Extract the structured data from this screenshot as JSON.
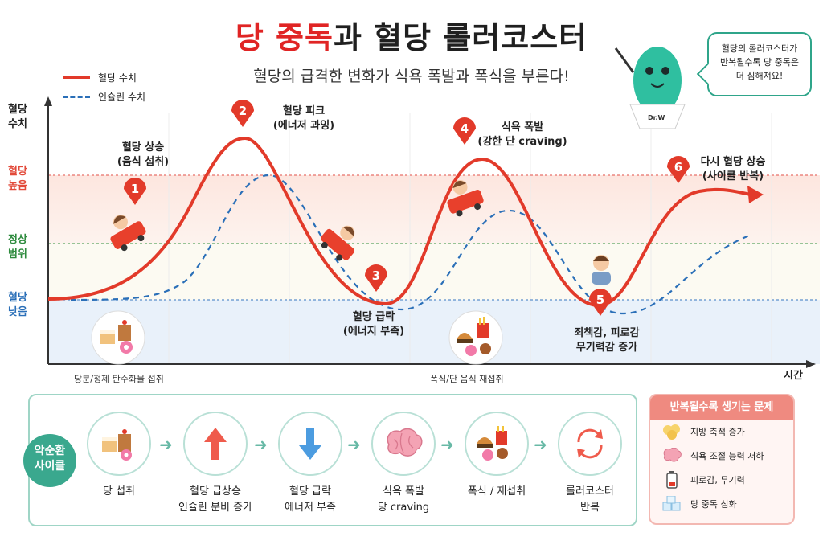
{
  "title": {
    "part_red": "당 중독",
    "part_dark": "과 혈당 롤러코스터"
  },
  "subtitle": "혈당의 급격한 변화가 식욕 폭발과 폭식을 부른다!",
  "legend": [
    {
      "label": "혈당 수치",
      "color": "#e23a2a",
      "style": "solid"
    },
    {
      "label": "인슐린 수치",
      "color": "#2a6fb8",
      "style": "dashed"
    }
  ],
  "speech": {
    "line1": "혈당의 롤러코스터가",
    "line2": "반복될수록 당 중독은",
    "line3": "더 심해져요!",
    "badge": "Dr.W"
  },
  "axis": {
    "y_title_1": "혈당",
    "y_title_2": "수치",
    "high_1": "혈당",
    "high_2": "높음",
    "normal_1": "정상",
    "normal_2": "범위",
    "low_1": "혈당",
    "low_2": "낮음",
    "x_title": "시간"
  },
  "stages": [
    {
      "num": "1",
      "title": "혈당 상승",
      "sub": "(음식 섭취)"
    },
    {
      "num": "2",
      "title": "혈당 피크",
      "sub": "(에너저 과잉)"
    },
    {
      "num": "3",
      "title": "혈당 급락",
      "sub": "(에너지 부족)"
    },
    {
      "num": "4",
      "title": "식욕 폭발",
      "sub": "(강한 단 craving)"
    },
    {
      "num": "5",
      "title": "죄책감, 피로감",
      "sub": "무기력감 증가"
    },
    {
      "num": "6",
      "title": "다시 혈당 상승",
      "sub": "(사이클 반복)"
    }
  ],
  "food_captions": {
    "first": "당분/정제 탄수화물 섭취",
    "second": "폭식/단 음식 재섭취"
  },
  "cycle": {
    "badge_1": "악순환",
    "badge_2": "사이클",
    "steps": [
      {
        "line1": "당 섭취",
        "line2": "",
        "icon": "dessert-icon"
      },
      {
        "line1": "혈당 급상승",
        "line2": "인슐린 분비 증가",
        "icon": "up-arrow-icon"
      },
      {
        "line1": "혈당 급락",
        "line2": "에너저 부족",
        "icon": "down-arrow-icon"
      },
      {
        "line1": "식욕 폭발",
        "line2": "당 craving",
        "icon": "brain-icon"
      },
      {
        "line1": "폭식 / 재섭취",
        "line2": "",
        "icon": "junk-food-icon"
      },
      {
        "line1": "롤러코스터",
        "line2": "반복",
        "icon": "cycle-icon"
      }
    ]
  },
  "problems": {
    "title": "반복될수록 생기는 문제",
    "items": [
      {
        "label": "지방 축적 증가",
        "icon": "fat-cells-icon"
      },
      {
        "label": "식욕 조절 능력 저하",
        "icon": "brain-icon"
      },
      {
        "label": "피로감, 무기력",
        "icon": "low-battery-icon"
      },
      {
        "label": "당 중독 심화",
        "icon": "sugar-cubes-icon"
      }
    ]
  },
  "colors": {
    "glucose": "#e23a2a",
    "insulin": "#2a6fb8",
    "high": "#e24a3a",
    "normal": "#2e8b3e",
    "low": "#2a6fb8",
    "accent": "#3aa88e"
  }
}
